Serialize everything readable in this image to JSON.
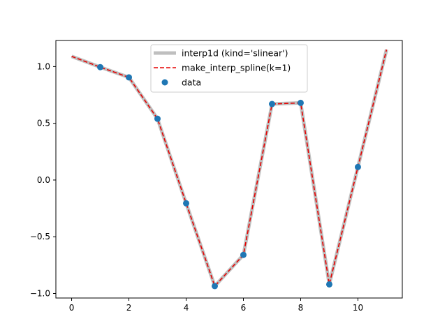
{
  "chart_data": {
    "type": "line",
    "title": "",
    "xlabel": "",
    "ylabel": "",
    "xlim": [
      -0.55,
      11.55
    ],
    "ylim": [
      -1.04,
      1.23
    ],
    "xticks": [
      0,
      2,
      4,
      6,
      8,
      10
    ],
    "yticks": [
      -1.0,
      -0.5,
      0.0,
      0.5,
      1.0
    ],
    "xtick_labels": [
      "0",
      "2",
      "4",
      "6",
      "8",
      "10"
    ],
    "ytick_labels": [
      "−1.0",
      "−0.5",
      "0.0",
      "0.5",
      "1.0"
    ],
    "grid": false,
    "legend_position": "top-center",
    "series": [
      {
        "name": "interp1d (kind='slinear')",
        "style": "solid-thick",
        "color": "#bfbfbf",
        "x": [
          0,
          1,
          2,
          3,
          4,
          5,
          6,
          7,
          8,
          9,
          10,
          11
        ],
        "y": [
          1.09,
          0.995,
          0.905,
          0.54,
          -0.205,
          -0.935,
          -0.66,
          0.67,
          0.68,
          -0.92,
          0.115,
          1.15
        ]
      },
      {
        "name": "make_interp_spline(k=1)",
        "style": "dashed",
        "color": "#e60000",
        "x": [
          0,
          1,
          2,
          3,
          4,
          5,
          6,
          7,
          8,
          9,
          10,
          11
        ],
        "y": [
          1.09,
          0.995,
          0.905,
          0.54,
          -0.205,
          -0.935,
          -0.66,
          0.67,
          0.68,
          -0.92,
          0.115,
          1.15
        ]
      },
      {
        "name": "data",
        "style": "markers",
        "color": "#1f77b4",
        "x": [
          1,
          2,
          3,
          4,
          5,
          6,
          7,
          8,
          9,
          10
        ],
        "y": [
          0.995,
          0.905,
          0.54,
          -0.205,
          -0.935,
          -0.66,
          0.67,
          0.68,
          -0.92,
          0.115
        ]
      }
    ]
  }
}
